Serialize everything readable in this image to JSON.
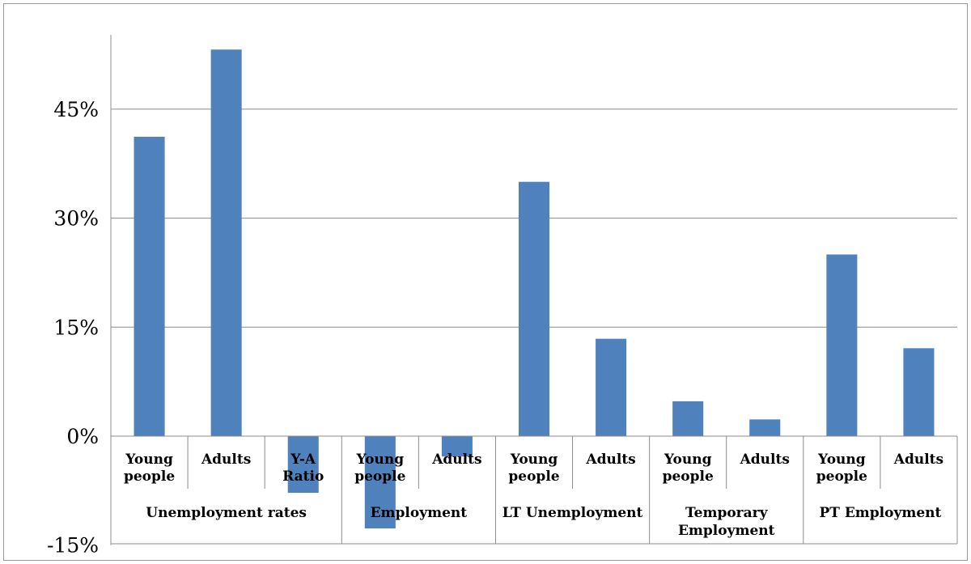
{
  "chart_data": {
    "type": "bar",
    "ylim": [
      -15,
      60
    ],
    "yticks": [
      -15,
      0,
      15,
      30,
      45
    ],
    "ytick_labels": [
      "-15%",
      "0%",
      "15%",
      "30%",
      "45%"
    ],
    "grid": true,
    "bar_color": "#4f81bd",
    "groups": [
      {
        "label": "Unemployment rates",
        "categories": [
          {
            "label": "Young people",
            "value": 41.2
          },
          {
            "label": "Adults",
            "value": 53.2
          },
          {
            "label": "Y-A Ratio",
            "value": -7.8
          }
        ]
      },
      {
        "label": "Employment",
        "categories": [
          {
            "label": "Young people",
            "value": -12.7
          },
          {
            "label": "Adults",
            "value": -2.8
          }
        ]
      },
      {
        "label": "LT Unemployment",
        "categories": [
          {
            "label": "Young people",
            "value": 35.0
          },
          {
            "label": "Adults",
            "value": 13.4
          }
        ]
      },
      {
        "label": "Temporary Employment",
        "categories": [
          {
            "label": "Young people",
            "value": 4.8
          },
          {
            "label": "Adults",
            "value": 2.3
          }
        ]
      },
      {
        "label": "PT Employment",
        "categories": [
          {
            "label": "Young people",
            "value": 25.0
          },
          {
            "label": "Adults",
            "value": 12.1
          }
        ]
      }
    ]
  }
}
